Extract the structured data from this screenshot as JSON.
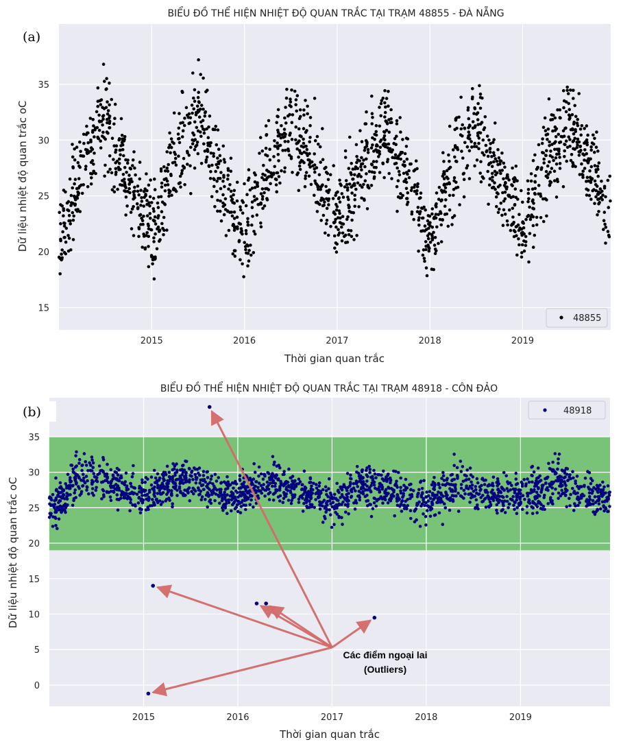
{
  "chart_data": [
    {
      "type": "scatter",
      "panel_label": "(a)",
      "title": "BIỂU ĐỒ THỂ HIỆN NHIỆT ĐỘ QUAN TRẮC TẠI TRẠM 48855 - ĐÀ NẴNG",
      "xlabel": "Thời gian quan trắc",
      "ylabel": "Dữ liệu nhiệt độ quan trắc oC",
      "xlim": [
        2014.0,
        2019.95
      ],
      "ylim": [
        13,
        40.4
      ],
      "xticks": [
        2015,
        2016,
        2017,
        2018,
        2019
      ],
      "xtick_labels": [
        "2015",
        "2016",
        "2017",
        "2018",
        "2019"
      ],
      "yticks": [
        15,
        20,
        25,
        30,
        35
      ],
      "ytick_labels": [
        "15",
        "20",
        "25",
        "30",
        "35"
      ],
      "grid": true,
      "legend": {
        "placement": "bottom-right",
        "entries": [
          "48855"
        ]
      },
      "series": [
        {
          "name": "48855",
          "color": "#000000",
          "seasonal_envelope": {
            "x": [
              2014.0,
              2014.25,
              2014.5,
              2014.75,
              2015.0,
              2015.25,
              2015.5,
              2015.75,
              2016.0,
              2016.25,
              2016.5,
              2016.75,
              2017.0,
              2017.25,
              2017.5,
              2017.75,
              2018.0,
              2018.25,
              2018.5,
              2018.75,
              2019.0,
              2019.25,
              2019.5,
              2019.75,
              2019.95
            ],
            "low": [
              16,
              22,
              26,
              22,
              16,
              22,
              26,
              22,
              15,
              22,
              26,
              22,
              18,
              22,
              26,
              22,
              16,
              22,
              26,
              22,
              18,
              22,
              26,
              22,
              18
            ],
            "high": [
              26,
              33,
              38,
              31,
              27,
              34,
              38,
              31,
              27,
              33,
              36,
              34,
              27,
              33,
              36,
              31,
              26,
              33,
              37,
              31,
              27,
              34,
              38,
              32,
              28
            ]
          }
        }
      ]
    },
    {
      "type": "scatter",
      "panel_label": "(b)",
      "title": "BIỂU ĐỒ THỂ HIỆN NHIỆT ĐỘ QUAN TRẮC TẠI TRẠM 48918 - CÔN ĐẢO",
      "xlabel": "Thời gian quan trắc",
      "ylabel": "Dữ liệu nhiệt độ quan trắc oC",
      "xlim": [
        2014.0,
        2019.95
      ],
      "ylim": [
        -3,
        40.5
      ],
      "xticks": [
        2015,
        2016,
        2017,
        2018,
        2019
      ],
      "xtick_labels": [
        "2015",
        "2016",
        "2017",
        "2018",
        "2019"
      ],
      "yticks": [
        0,
        5,
        10,
        15,
        20,
        25,
        30,
        35
      ],
      "ytick_labels": [
        "0",
        "5",
        "10",
        "15",
        "20",
        "25",
        "30",
        "35"
      ],
      "grid": true,
      "legend": {
        "placement": "top-right",
        "entries": [
          "48918"
        ]
      },
      "normal_range_band": {
        "low": 19,
        "high": 35,
        "color": "#6fbf6f"
      },
      "series": [
        {
          "name": "48918",
          "color": "#000080",
          "seasonal_envelope": {
            "x": [
              2014.0,
              2014.35,
              2014.6,
              2015.0,
              2015.35,
              2015.6,
              2016.0,
              2016.35,
              2016.6,
              2017.0,
              2017.35,
              2017.6,
              2018.0,
              2018.35,
              2018.6,
              2019.0,
              2019.35,
              2019.6,
              2019.95
            ],
            "low": [
              21,
              25,
              25,
              23,
              25,
              25,
              23,
              25,
              25,
              22,
              24,
              24,
              22,
              24,
              24,
              23,
              24,
              24,
              23
            ],
            "high": [
              28,
              34,
              32,
              30,
              33,
              31,
              30,
              33,
              31,
              29,
              32,
              31,
              30,
              33,
              31,
              30,
              33,
              31,
              29
            ]
          }
        }
      ],
      "outliers": [
        {
          "x": 2015.7,
          "y": 39.2
        },
        {
          "x": 2015.1,
          "y": 14.0
        },
        {
          "x": 2016.2,
          "y": 11.5
        },
        {
          "x": 2016.3,
          "y": 11.5
        },
        {
          "x": 2017.45,
          "y": 9.5
        },
        {
          "x": 2015.05,
          "y": -1.2
        }
      ],
      "annotation": {
        "text_lines": [
          "Các điểm ngoại lai",
          "(Outliers)"
        ],
        "arrow_origin": {
          "x": 2017.0,
          "y": 5.3
        },
        "arrow_color": "#d46a6a"
      }
    }
  ]
}
